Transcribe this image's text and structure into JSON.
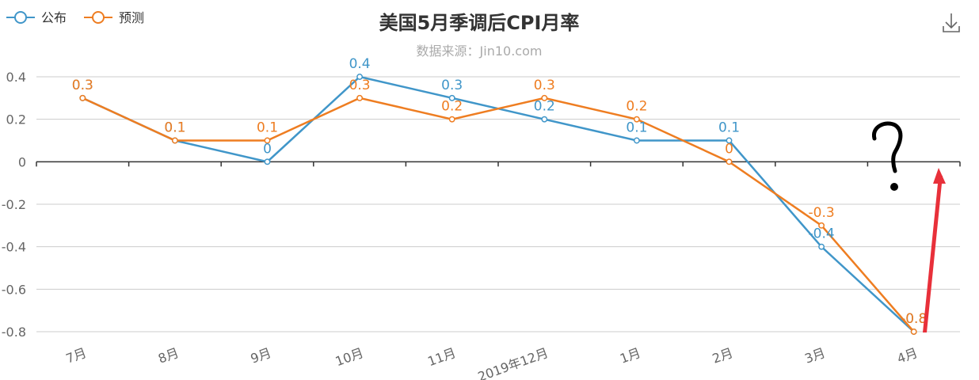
{
  "chart_data": {
    "type": "line",
    "title": "美国5月季调后CPI月率",
    "subtitle": "数据来源：Jin10.com",
    "categories": [
      "7月",
      "8月",
      "9月",
      "10月",
      "11月",
      "2019年12月",
      "1月",
      "2月",
      "3月",
      "4月"
    ],
    "series": [
      {
        "name": "公布",
        "color": "#4096c9",
        "values": [
          0.3,
          0.1,
          0,
          0.4,
          0.3,
          0.2,
          0.1,
          0.1,
          -0.4,
          -0.8
        ]
      },
      {
        "name": "预测",
        "color": "#ee7d21",
        "values": [
          0.3,
          0.1,
          0.1,
          0.3,
          0.2,
          0.3,
          0.2,
          0,
          -0.3,
          -0.8
        ]
      }
    ],
    "ylim": [
      -0.8,
      0.4
    ],
    "yticks": [
      0.4,
      0.2,
      0,
      -0.2,
      -0.4,
      -0.6,
      -0.8
    ],
    "grid": true,
    "legend_position": "top-left"
  },
  "annotations": {
    "question_mark": "?",
    "arrow_color": "#e8303a"
  },
  "icons": {
    "download": "download-icon"
  }
}
